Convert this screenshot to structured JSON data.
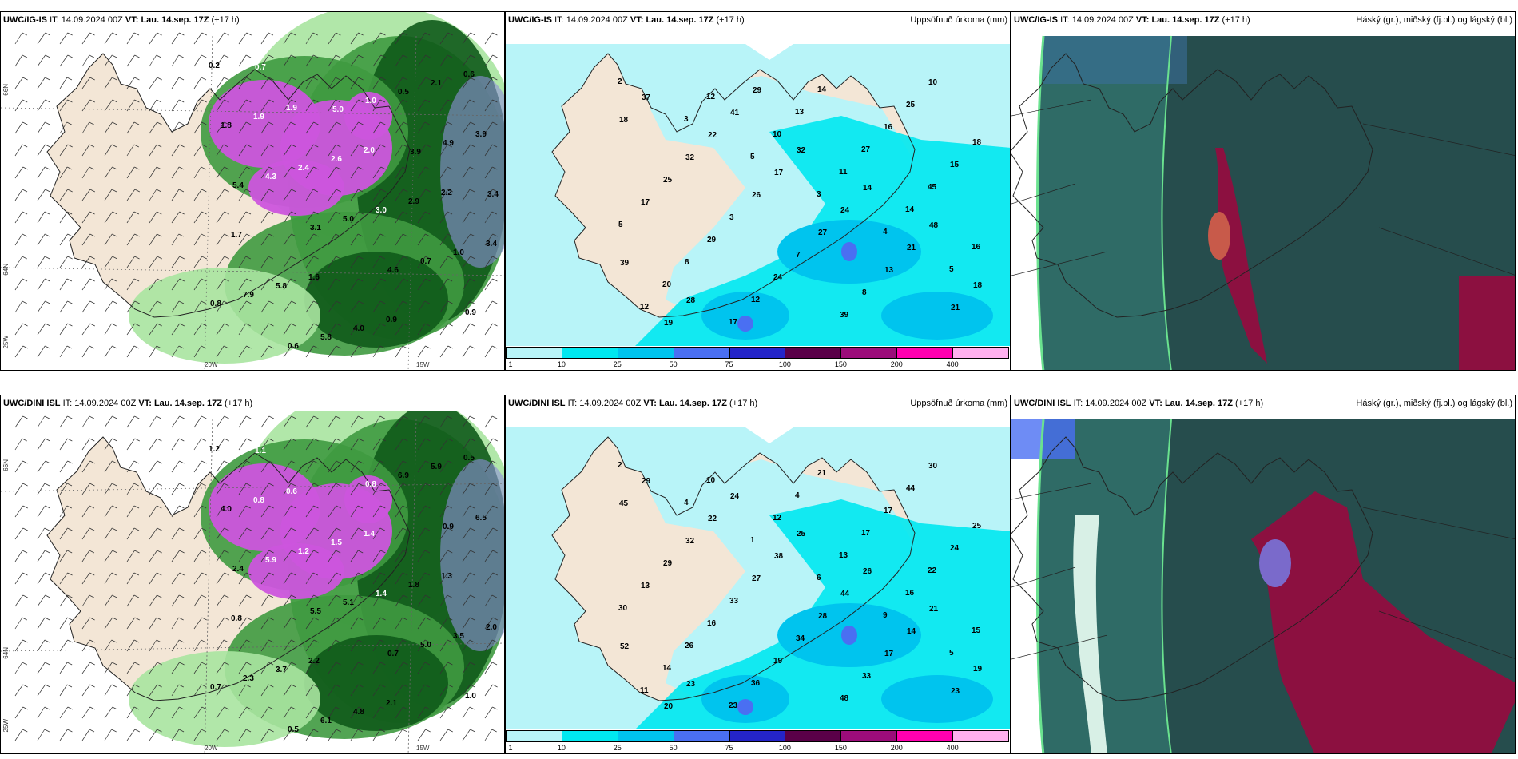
{
  "rows": [
    {
      "model": "UWC/IG-IS",
      "it_label": "IT:",
      "it_value": "14.09.2024 00Z",
      "vt_label": "VT:",
      "vt_value": "Lau. 14.sep. 17Z",
      "lead": "(+17 h)",
      "wind_values": [
        "0.2",
        "1.9",
        "2.0",
        "2.2",
        "1.7",
        "1.6",
        "0.9",
        "0.6",
        "1.9",
        "2.6",
        "2.9",
        "3.4",
        "5.8",
        "4.0",
        "2.1",
        "1.8",
        "2.4",
        "3.0",
        "1.0",
        "7.9",
        "5.8",
        "0.5",
        "3.9",
        "4.3",
        "5.0",
        "0.7",
        "0.8",
        "0.6",
        "1.0",
        "4.9",
        "5.4",
        "3.1",
        "4.6",
        "0.9",
        "0.7",
        "5.0",
        "3.9",
        "3.4"
      ],
      "precip_values": [
        "2",
        "3",
        "5",
        "3",
        "4",
        "5",
        "12",
        "12",
        "10",
        "11",
        "14",
        "16",
        "20",
        "17",
        "13",
        "27",
        "45",
        "5",
        "8",
        "12",
        "14",
        "16",
        "15",
        "17",
        "29",
        "24",
        "39",
        "25",
        "18",
        "25",
        "3",
        "7",
        "8",
        "10",
        "18",
        "32",
        "26",
        "27",
        "13",
        "21",
        "37",
        "22",
        "17",
        "24",
        "21",
        "18",
        "19",
        "41",
        "32",
        "14",
        "48",
        "39",
        "28",
        "29"
      ]
    },
    {
      "model": "UWC/DINI ISL",
      "it_label": "IT:",
      "it_value": "14.09.2024 00Z",
      "vt_label": "VT:",
      "vt_value": "Lau. 14.sep. 17Z",
      "lead": "(+17 h)",
      "wind_values": [
        "1.2",
        "0.6",
        "1.4",
        "1.3",
        "0.8",
        "2.2",
        "2.1",
        "0.5",
        "0.8",
        "1.5",
        "1.8",
        "2.0",
        "3.7",
        "4.8",
        "5.9",
        "4.0",
        "1.2",
        "1.4",
        "3.5",
        "2.3",
        "6.1",
        "6.9",
        "6.5",
        "5.9",
        "5.1",
        "5.0",
        "0.7",
        "0.5",
        "0.8",
        "0.9",
        "2.4",
        "5.5",
        "0.7",
        "1.0",
        "1.1"
      ],
      "precip_values": [
        "2",
        "4",
        "1",
        "6",
        "9",
        "5",
        "11",
        "10",
        "12",
        "13",
        "16",
        "15",
        "14",
        "23",
        "4",
        "17",
        "22",
        "30",
        "26",
        "36",
        "21",
        "17",
        "24",
        "13",
        "16",
        "19",
        "48",
        "44",
        "25",
        "29",
        "33",
        "34",
        "33",
        "30",
        "45",
        "32",
        "27",
        "28",
        "17",
        "23",
        "29",
        "22",
        "38",
        "44",
        "14",
        "19",
        "20",
        "24",
        "25",
        "26",
        "21",
        "52",
        "23"
      ]
    }
  ],
  "precip_title": "Uppsöfnuð úrkoma (mm)",
  "cloud_title": "Háský (gr.), miðský (fj.bl.) og lágský (bl.)",
  "colorbar": {
    "ticks": [
      "1",
      "10",
      "25",
      "50",
      "75",
      "100",
      "150",
      "200",
      "400"
    ],
    "colors": [
      "#b8f4f8",
      "#00e8f0",
      "#00c4ee",
      "#4a6ff2",
      "#2424c8",
      "#5a0048",
      "#9c0c7a",
      "#ff00b0",
      "#ffb0ee"
    ]
  },
  "axis_labels": {
    "lat_66": "66N",
    "lat_64": "64N",
    "lon_25": "25W",
    "lon_20": "20W",
    "lon_15": "15W"
  },
  "colors": {
    "land": "#f3e6d6",
    "sea": "#ffffff",
    "precip_light": "#b8f4f8",
    "green_dark": "#0f5a1a",
    "green_mid": "#3f9a40",
    "green_light": "#a8e4a0",
    "magenta": "#cc55dd",
    "cloud_teal": "#2f6b66",
    "cloud_dark": "#264d4d",
    "cloud_red": "#8c1040"
  }
}
